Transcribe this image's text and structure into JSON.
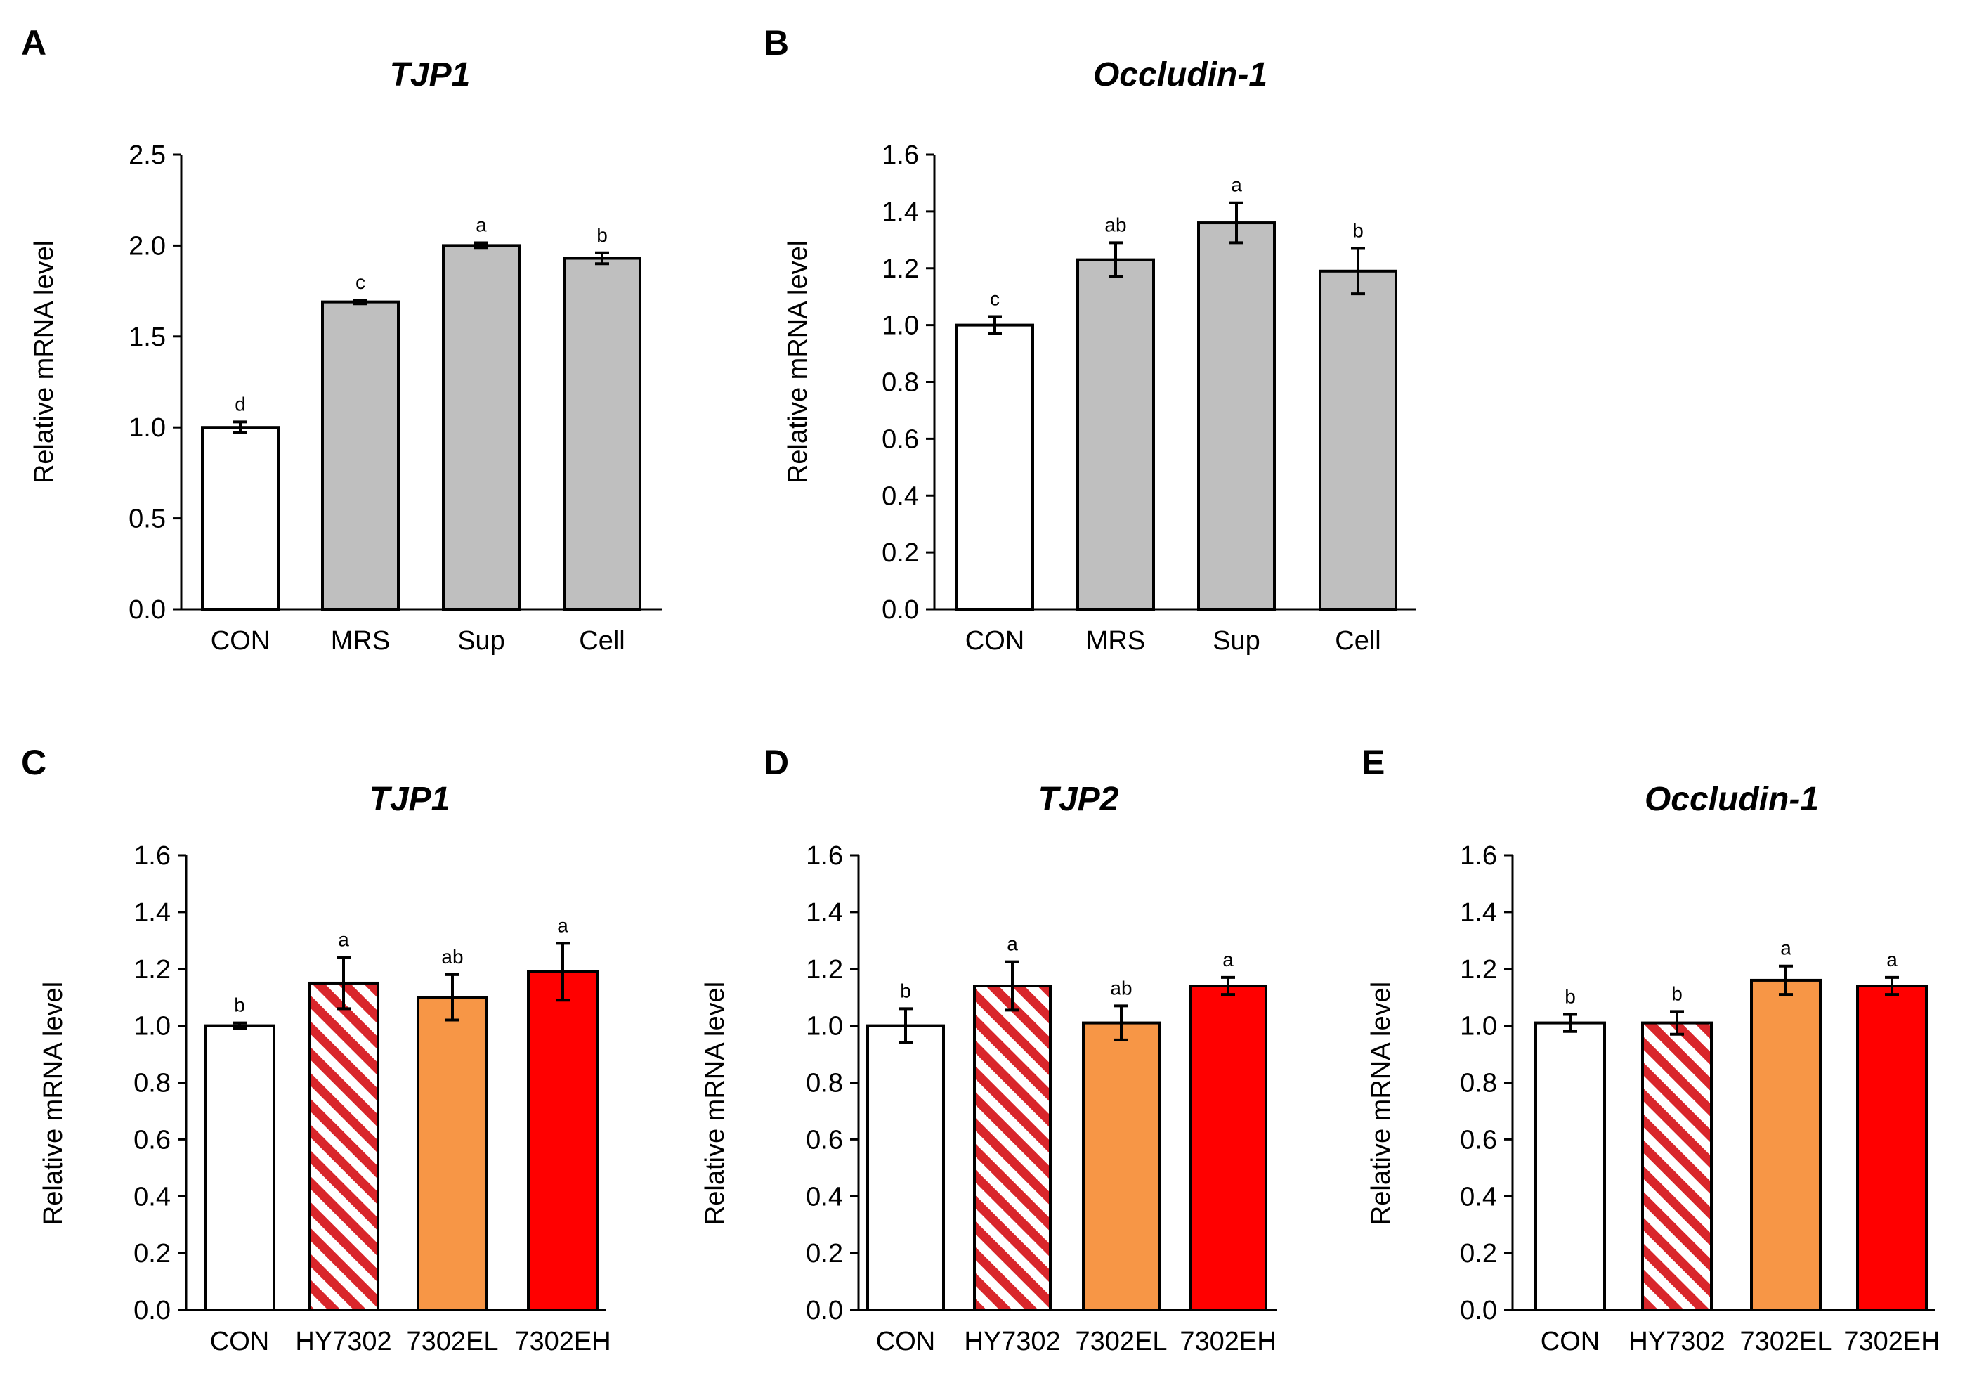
{
  "colors": {
    "white": "#ffffff",
    "gray": "#bfbfbf",
    "orange": "#f79646",
    "red": "#ff0000",
    "hatch": "#d9262b"
  },
  "chart_data": [
    {
      "panel": "A",
      "type": "bar",
      "title": "TJP1",
      "ylabel": "Relative mRNA level",
      "ylim": [
        0,
        2.5
      ],
      "yticks": [
        "0.0",
        "0.5",
        "1.0",
        "1.5",
        "2.0",
        "2.5"
      ],
      "categories": [
        "CON",
        "MRS",
        "Sup",
        "Cell"
      ],
      "values": [
        1.0,
        1.69,
        2.0,
        1.93
      ],
      "errors": [
        0.03,
        0.01,
        0.015,
        0.03
      ],
      "significance": [
        "d",
        "c",
        "a",
        "b"
      ],
      "fills": [
        "white",
        "gray",
        "gray",
        "gray"
      ]
    },
    {
      "panel": "B",
      "type": "bar",
      "title": "Occludin-1",
      "ylabel": "Relative mRNA level",
      "ylim": [
        0,
        1.6
      ],
      "yticks": [
        "0.0",
        "0.2",
        "0.4",
        "0.6",
        "0.8",
        "1.0",
        "1.2",
        "1.4",
        "1.6"
      ],
      "categories": [
        "CON",
        "MRS",
        "Sup",
        "Cell"
      ],
      "values": [
        1.0,
        1.23,
        1.36,
        1.19
      ],
      "errors": [
        0.03,
        0.06,
        0.07,
        0.08
      ],
      "significance": [
        "c",
        "ab",
        "a",
        "b"
      ],
      "fills": [
        "white",
        "gray",
        "gray",
        "gray"
      ]
    },
    {
      "panel": "C",
      "type": "bar",
      "title": "TJP1",
      "ylabel": "Relative mRNA level",
      "ylim": [
        0,
        1.6
      ],
      "yticks": [
        "0.0",
        "0.2",
        "0.4",
        "0.6",
        "0.8",
        "1.0",
        "1.2",
        "1.4",
        "1.6"
      ],
      "categories": [
        "CON",
        "HY7302",
        "7302EL",
        "7302EH"
      ],
      "values": [
        1.0,
        1.15,
        1.1,
        1.19
      ],
      "errors": [
        0.01,
        0.09,
        0.08,
        0.1
      ],
      "significance": [
        "b",
        "a",
        "ab",
        "a"
      ],
      "fills": [
        "white",
        "hatch",
        "orange",
        "red"
      ]
    },
    {
      "panel": "D",
      "type": "bar",
      "title": "TJP2",
      "ylabel": "Relative mRNA level",
      "ylim": [
        0,
        1.6
      ],
      "yticks": [
        "0.0",
        "0.2",
        "0.4",
        "0.6",
        "0.8",
        "1.0",
        "1.2",
        "1.4",
        "1.6"
      ],
      "categories": [
        "CON",
        "HY7302",
        "7302EL",
        "7302EH"
      ],
      "values": [
        1.0,
        1.14,
        1.01,
        1.14
      ],
      "errors": [
        0.06,
        0.085,
        0.06,
        0.03
      ],
      "significance": [
        "b",
        "a",
        "ab",
        "a"
      ],
      "fills": [
        "white",
        "hatch",
        "orange",
        "red"
      ]
    },
    {
      "panel": "E",
      "type": "bar",
      "title": "Occludin-1",
      "ylabel": "Relative mRNA level",
      "ylim": [
        0,
        1.6
      ],
      "yticks": [
        "0.0",
        "0.2",
        "0.4",
        "0.6",
        "0.8",
        "1.0",
        "1.2",
        "1.4",
        "1.6"
      ],
      "categories": [
        "CON",
        "HY7302",
        "7302EL",
        "7302EH"
      ],
      "values": [
        1.01,
        1.01,
        1.16,
        1.14
      ],
      "errors": [
        0.03,
        0.04,
        0.05,
        0.03
      ],
      "significance": [
        "b",
        "b",
        "a",
        "a"
      ],
      "fills": [
        "white",
        "hatch",
        "orange",
        "red"
      ]
    }
  ]
}
